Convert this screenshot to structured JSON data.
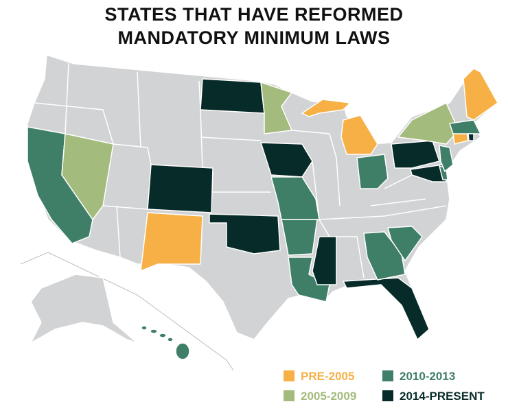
{
  "header": {
    "title_lines": [
      "STATES THAT HAVE REFORMED",
      "MANDATORY MINIMUM LAWS"
    ]
  },
  "legend": {
    "items": [
      {
        "label": "PRE-2005",
        "color": "#f7b046",
        "text_color": "#f7b046"
      },
      {
        "label": "2010-2013",
        "color": "#3f7f68",
        "text_color": "#3f7f68"
      },
      {
        "label": "2005-2009",
        "color": "#a3bb7c",
        "text_color": "#a3bb7c"
      },
      {
        "label": "2014-PRESENT",
        "color": "#072b28",
        "text_color": "#072b28"
      }
    ]
  }
}
